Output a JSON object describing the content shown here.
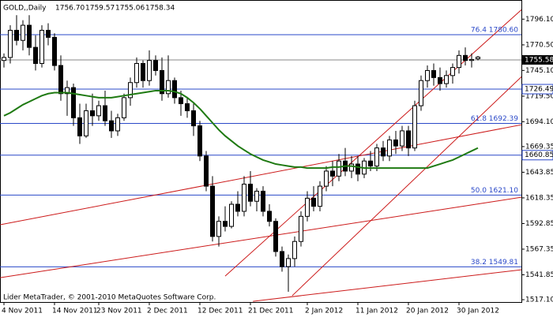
{
  "chart_data": {
    "type": "candlestick",
    "header": {
      "symbol": "GOLD,,Daily",
      "ohlc": [
        "1756.70",
        "1759.57",
        "1755.06",
        "1758.34"
      ]
    },
    "footer": "Lider MetaTrader, © 2001-2010 MetaQuotes Software Corp.",
    "categories": [
      "4 Nov 2011",
      null,
      null,
      null,
      null,
      null,
      null,
      null,
      "14 Nov 2011",
      null,
      null,
      null,
      null,
      null,
      null,
      "23 Nov 2011",
      null,
      null,
      null,
      null,
      null,
      null,
      null,
      "2 Dec 2011",
      null,
      null,
      null,
      null,
      null,
      null,
      null,
      "12 Dec 2011",
      null,
      null,
      null,
      null,
      null,
      null,
      null,
      "21 Dec 2011",
      null,
      null,
      null,
      null,
      null,
      null,
      null,
      null,
      "2 Jan 2012",
      null,
      null,
      null,
      null,
      null,
      null,
      null,
      "11 Jan 2012",
      null,
      null,
      null,
      null,
      null,
      null,
      null,
      "20 Jan 2012",
      null,
      null,
      null,
      null,
      null,
      null,
      null,
      "30 Jan 2012",
      null,
      null,
      null
    ],
    "open": [
      1755,
      1758,
      1785,
      1775,
      1790,
      1768,
      1752,
      1785,
      1778,
      1750,
      1722,
      1728,
      1698,
      1680,
      1705,
      1700,
      1710,
      1695,
      1685,
      1698,
      1718,
      1733,
      1752,
      1735,
      1755,
      1745,
      1722,
      1735,
      1718,
      1712,
      1705,
      1690,
      1660,
      1630,
      1580,
      1595,
      1590,
      1612,
      1605,
      1632,
      1615,
      1625,
      1605,
      1595,
      1565,
      1550,
      1558,
      1575,
      1600,
      1618,
      1610,
      1630,
      1645,
      1640,
      1655,
      1645,
      1652,
      1642,
      1655,
      1650,
      1668,
      1660,
      1676,
      1670,
      1685,
      1668,
      1710,
      1735,
      1745,
      1738,
      1732,
      1740,
      1748,
      1760,
      1755,
      1756.7
    ],
    "high": [
      1762,
      1790,
      1800,
      1795,
      1800,
      1780,
      1790,
      1792,
      1782,
      1760,
      1735,
      1732,
      1712,
      1712,
      1722,
      1715,
      1725,
      1705,
      1702,
      1722,
      1738,
      1758,
      1755,
      1765,
      1760,
      1758,
      1760,
      1738,
      1725,
      1718,
      1712,
      1695,
      1665,
      1640,
      1600,
      1610,
      1615,
      1625,
      1640,
      1645,
      1628,
      1630,
      1612,
      1598,
      1570,
      1562,
      1580,
      1605,
      1625,
      1630,
      1635,
      1650,
      1655,
      1662,
      1668,
      1660,
      1660,
      1658,
      1665,
      1672,
      1675,
      1680,
      1685,
      1690,
      1690,
      1715,
      1740,
      1750,
      1752,
      1748,
      1745,
      1752,
      1765,
      1768,
      1762,
      1759.57
    ],
    "low": [
      1748,
      1752,
      1770,
      1765,
      1760,
      1745,
      1748,
      1770,
      1745,
      1715,
      1700,
      1690,
      1672,
      1678,
      1690,
      1695,
      1690,
      1678,
      1680,
      1695,
      1710,
      1728,
      1728,
      1730,
      1740,
      1715,
      1718,
      1712,
      1700,
      1698,
      1680,
      1655,
      1625,
      1575,
      1570,
      1585,
      1588,
      1600,
      1600,
      1610,
      1605,
      1600,
      1590,
      1560,
      1545,
      1525,
      1550,
      1570,
      1595,
      1605,
      1605,
      1625,
      1630,
      1635,
      1640,
      1638,
      1635,
      1638,
      1645,
      1645,
      1655,
      1655,
      1662,
      1665,
      1660,
      1665,
      1705,
      1728,
      1730,
      1725,
      1728,
      1732,
      1742,
      1750,
      1748,
      1755.06
    ],
    "close": [
      1758,
      1785,
      1775,
      1790,
      1768,
      1752,
      1785,
      1778,
      1750,
      1722,
      1728,
      1698,
      1680,
      1705,
      1700,
      1710,
      1695,
      1685,
      1698,
      1718,
      1733,
      1752,
      1735,
      1755,
      1745,
      1722,
      1735,
      1718,
      1712,
      1705,
      1690,
      1660,
      1630,
      1580,
      1595,
      1590,
      1612,
      1605,
      1632,
      1615,
      1625,
      1605,
      1595,
      1565,
      1550,
      1558,
      1575,
      1600,
      1618,
      1610,
      1630,
      1645,
      1640,
      1655,
      1645,
      1652,
      1642,
      1655,
      1650,
      1668,
      1660,
      1676,
      1670,
      1685,
      1668,
      1710,
      1735,
      1745,
      1738,
      1732,
      1740,
      1748,
      1760,
      1755,
      1756,
      1758.34
    ],
    "ma": {
      "color": "#1f7a12",
      "values": [
        1700,
        1703,
        1707,
        1711,
        1714,
        1717,
        1720,
        1722,
        1723,
        1723,
        1723,
        1722,
        1721,
        1720,
        1719,
        1718,
        1718,
        1718,
        1719,
        1720,
        1721,
        1722,
        1723,
        1724,
        1725,
        1725,
        1725,
        1724,
        1722,
        1718,
        1713,
        1707,
        1700,
        1693,
        1686,
        1680,
        1675,
        1670,
        1666,
        1662,
        1659,
        1656,
        1654,
        1652,
        1651,
        1650,
        1649,
        1649,
        1648,
        1648,
        1648,
        1648,
        1649,
        1649,
        1650,
        1650,
        1649,
        1648,
        1648,
        1648,
        1648,
        1648,
        1648,
        1648,
        1648,
        1648,
        1648,
        1648,
        1650,
        1652,
        1654,
        1656,
        1659,
        1662,
        1665,
        1668
      ]
    },
    "ylim": [
      1514,
      1812
    ],
    "yticks": [
      {
        "value": 1796.1,
        "label": "1796.10"
      },
      {
        "value": 1770.5,
        "label": "1770.50"
      },
      {
        "value": 1745.1,
        "label": "1745.10"
      },
      {
        "value": 1719.5,
        "label": "1719.50"
      },
      {
        "value": 1694.1,
        "label": "1694.10"
      },
      1669.35,
      1643.85,
      1618.35,
      1592.85,
      1567.35,
      1541.85,
      {
        "value": 1517.1,
        "label": "1517.10"
      }
    ],
    "levels": [
      {
        "value": 1780.6,
        "label": "76.4 1780.60"
      },
      {
        "value": 1692.39,
        "label": "61.8 1692.39"
      },
      {
        "value": 1621.1,
        "label": "50.0 1621.10"
      },
      {
        "value": 1549.81,
        "label": "38.2 1549.81"
      }
    ],
    "marked_levels": [
      {
        "value": 1726.49,
        "label": "1726.49"
      },
      {
        "value": 1660.85,
        "label": "1660.85"
      }
    ],
    "current_price": {
      "value": 1755.58,
      "label": "1755.58"
    },
    "level_color": "#2a48c8",
    "trend_color": "#cc1a1a",
    "trendlines": [
      [
        [
          -0.6,
          1591.6
        ],
        [
          81.9,
          1691.1
        ]
      ],
      [
        [
          -0.6,
          1539
        ],
        [
          81.9,
          1619
        ]
      ],
      [
        [
          39.4,
          1515.5
        ],
        [
          81.9,
          1546.9
        ]
      ],
      [
        [
          35,
          1540.6
        ],
        [
          81.9,
          1805.5
        ]
      ],
      [
        [
          45.6,
          1521
        ],
        [
          81.9,
          1738.9
        ]
      ]
    ]
  }
}
